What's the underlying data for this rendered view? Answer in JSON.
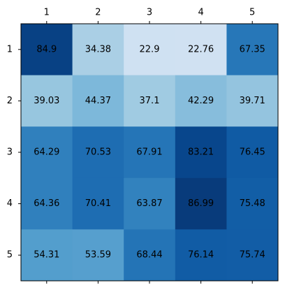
{
  "chart_data": {
    "type": "heatmap",
    "colormap": "Blues",
    "vmin": 22.76,
    "vmax": 86.99,
    "x_tick_labels": [
      "1",
      "2",
      "3",
      "4",
      "5"
    ],
    "y_tick_labels": [
      "1",
      "2",
      "3",
      "4",
      "5"
    ],
    "x_tick_position": "top",
    "grid": false,
    "values": [
      [
        84.9,
        34.38,
        22.9,
        22.76,
        67.35
      ],
      [
        39.03,
        44.37,
        37.1,
        42.29,
        39.71
      ],
      [
        64.29,
        70.53,
        67.91,
        83.21,
        76.45
      ],
      [
        64.36,
        70.41,
        63.87,
        86.99,
        75.48
      ],
      [
        54.31,
        53.59,
        68.44,
        76.14,
        75.74
      ]
    ],
    "cell_labels": [
      [
        "84.9",
        "34.38",
        "22.9",
        "22.76",
        "67.35"
      ],
      [
        "39.03",
        "44.37",
        "37.1",
        "42.29",
        "39.71"
      ],
      [
        "64.29",
        "70.53",
        "67.91",
        "83.21",
        "76.45"
      ],
      [
        "64.36",
        "70.41",
        "63.87",
        "86.99",
        "75.48"
      ],
      [
        "54.31",
        "53.59",
        "68.44",
        "76.14",
        "75.74"
      ]
    ]
  }
}
